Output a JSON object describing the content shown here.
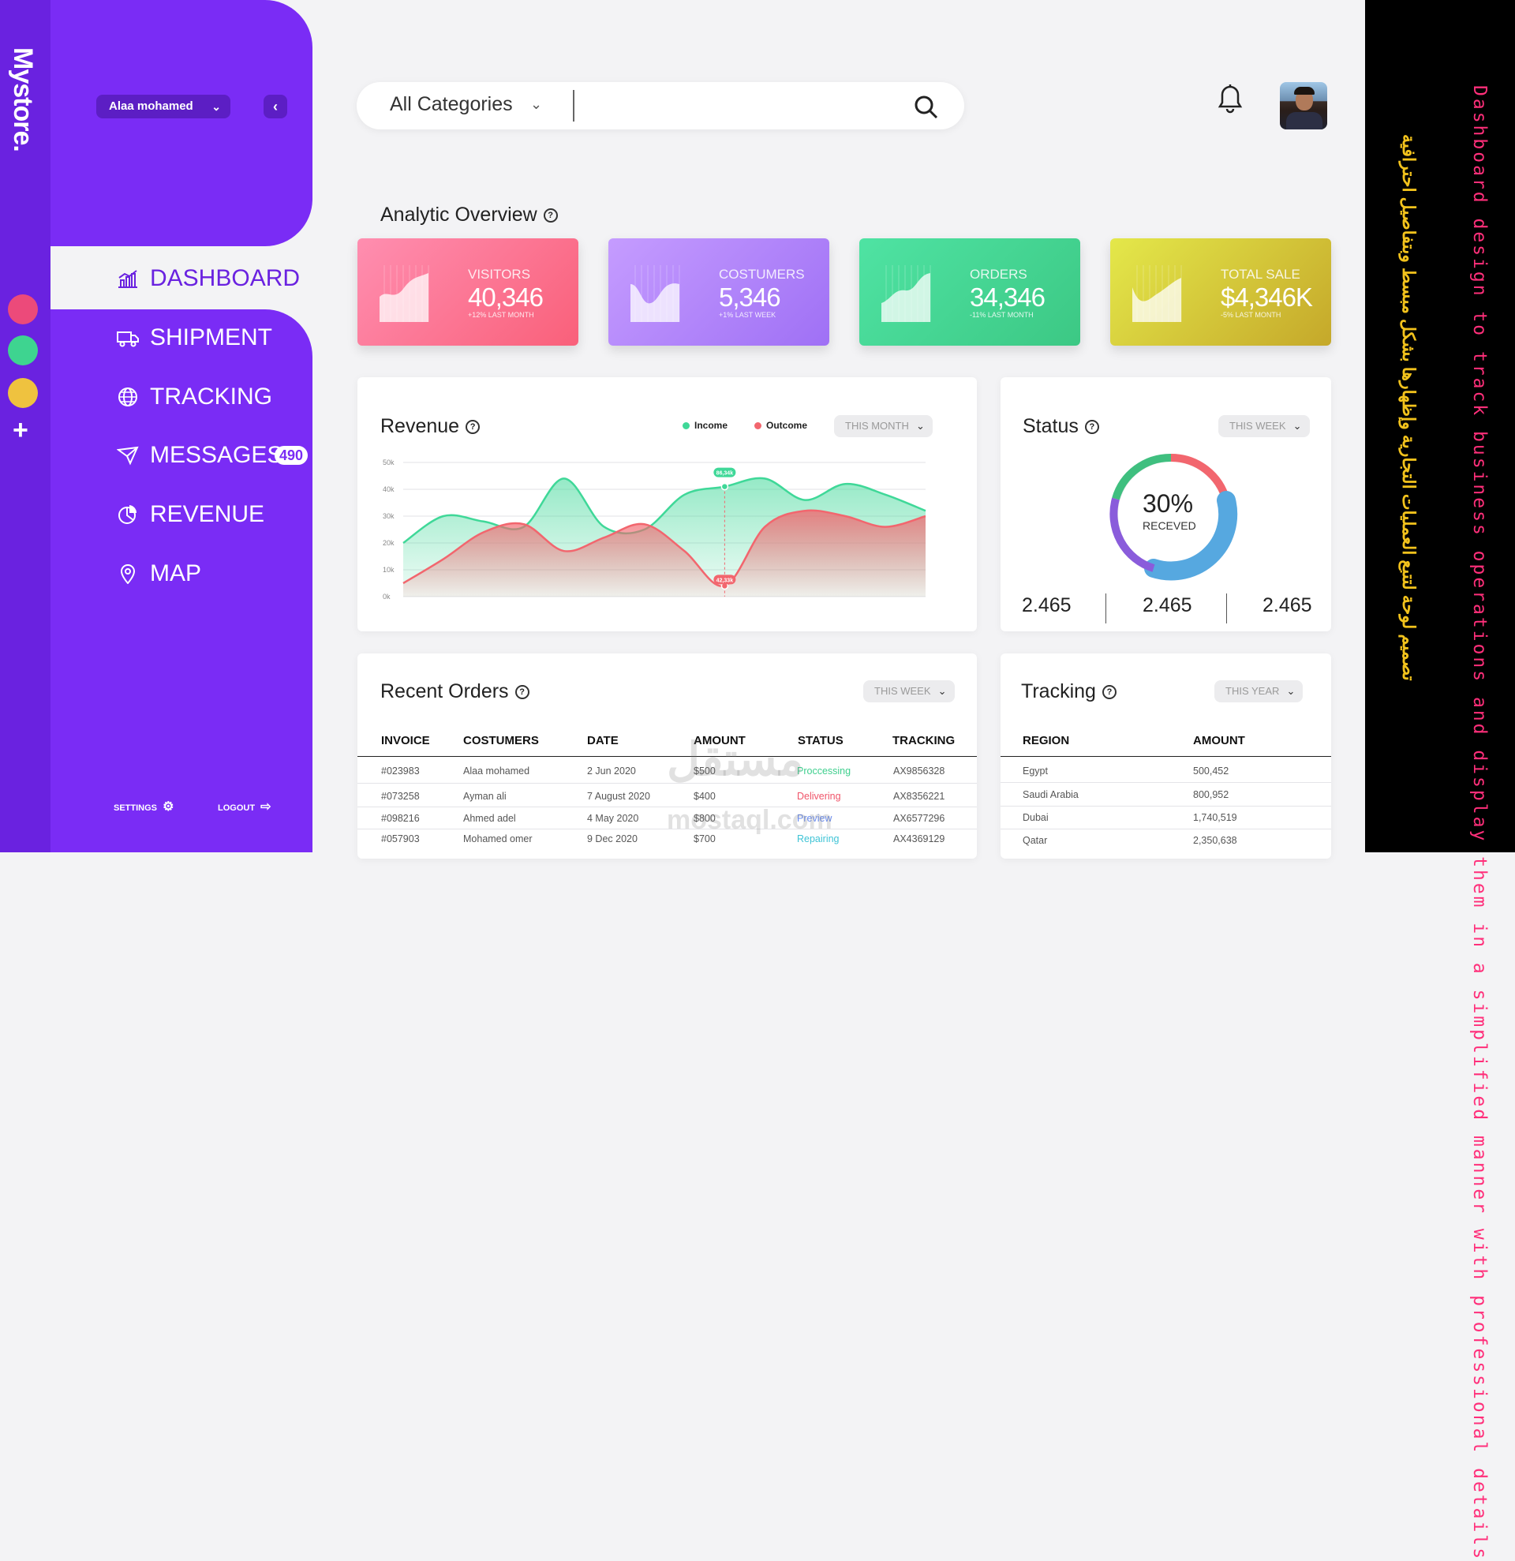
{
  "brand": "Mystore.",
  "user": {
    "name": "Alaa mohamed"
  },
  "nav": [
    {
      "label": "DASHBOARD",
      "active": true,
      "icon": "chart-icon"
    },
    {
      "label": "SHIPMENT",
      "icon": "truck-icon"
    },
    {
      "label": "TRACKING",
      "icon": "globe-icon"
    },
    {
      "label": "MESSAGES",
      "icon": "send-icon",
      "badge": "490"
    },
    {
      "label": "REVENUE",
      "icon": "pie-icon"
    },
    {
      "label": "MAP",
      "icon": "map-pin-icon"
    }
  ],
  "sidebar_footer": {
    "settings": "SETTINGS",
    "logout": "LOGOUT"
  },
  "theme_colors": [
    "#ec4a7a",
    "#3ed490",
    "#efc23f"
  ],
  "search": {
    "category": "All Categories",
    "value": ""
  },
  "analytic": {
    "title": "Analytic Overview",
    "cards": [
      {
        "label": "VISITORS",
        "value": "40,346",
        "sub": "+12% LAST MONTH",
        "colors": [
          "#ff8eb0",
          "#f9607a"
        ]
      },
      {
        "label": "COSTUMERS",
        "value": "5,346",
        "sub": "+1% LAST WEEK",
        "colors": [
          "#c59cff",
          "#9f70f5"
        ]
      },
      {
        "label": "ORDERS",
        "value": "34,346",
        "sub": "-11% LAST MONTH",
        "colors": [
          "#4fe3a3",
          "#3cc884"
        ]
      },
      {
        "label": "TOTAL SALE",
        "value": "$4,346K",
        "sub": "-5% LAST MONTH",
        "colors": [
          "#e4e84a",
          "#c5a82a"
        ]
      }
    ]
  },
  "revenue": {
    "title": "Revenue",
    "legend": [
      "Income",
      "Outcome"
    ],
    "period": "THIS MONTH",
    "callouts": [
      "86,34k",
      "42,33k"
    ]
  },
  "chart_data": {
    "type": "area",
    "ylim": [
      0,
      50000
    ],
    "yticks": [
      "0k",
      "10k",
      "20k",
      "30k",
      "40k",
      "50k"
    ],
    "series": [
      {
        "name": "Income",
        "color": "#3fd898",
        "values": [
          20000,
          30000,
          28000,
          26000,
          44000,
          26000,
          25000,
          38000,
          41000,
          44000,
          36000,
          42000,
          38000,
          32000
        ]
      },
      {
        "name": "Outcome",
        "color": "#f2666e",
        "values": [
          5000,
          14000,
          24000,
          27000,
          17000,
          22000,
          27000,
          17000,
          4000,
          26000,
          32000,
          30000,
          26000,
          30000
        ]
      }
    ]
  },
  "status": {
    "title": "Status",
    "period": "THIS WEEK",
    "percent": "30%",
    "caption": "RECEVED",
    "values": [
      "2.465",
      "2.465",
      "2.465"
    ]
  },
  "orders": {
    "title": "Recent Orders",
    "period": "THIS WEEK",
    "columns": [
      "INVOICE",
      "COSTUMERS",
      "DATE",
      "AMOUNT",
      "STATUS",
      "TRACKING"
    ],
    "rows": [
      {
        "invoice": "#023983",
        "customer": "Alaa mohamed",
        "date": "2 Jun 2020",
        "amount": "$500",
        "status": "Proccessing",
        "status_color": "#3fcf8e",
        "tracking": "AX9856328"
      },
      {
        "invoice": "#073258",
        "customer": "Ayman ali",
        "date": "7 August 2020",
        "amount": "$400",
        "status": "Delivering",
        "status_color": "#f0556a",
        "tracking": "AX8356221"
      },
      {
        "invoice": "#098216",
        "customer": "Ahmed adel",
        "date": "4 May 2020",
        "amount": "$800",
        "status": "Preview",
        "status_color": "#6a8cf0",
        "tracking": "AX6577296"
      },
      {
        "invoice": "#057903",
        "customer": "Mohamed omer",
        "date": "9 Dec 2020",
        "amount": "$700",
        "status": "Repairing",
        "status_color": "#3fc4d6",
        "tracking": "AX4369129"
      }
    ]
  },
  "tracking": {
    "title": "Tracking",
    "period": "THIS YEAR",
    "columns": [
      "REGION",
      "AMOUNT"
    ],
    "rows": [
      {
        "region": "Egypt",
        "amount": "500,452"
      },
      {
        "region": "Saudi Arabia",
        "amount": "800,952"
      },
      {
        "region": "Dubai",
        "amount": "1,740,519"
      },
      {
        "region": "Qatar",
        "amount": "2,350,638"
      }
    ]
  },
  "side_caption_en": "Dashboard design to track business operations and display them in a simplified manner with professional details",
  "side_caption_ar": "تصميم لوحة لتتبع العمليات التجارية وإظهارها بشكل مبسط وبتفاصيل احترافية",
  "watermark": {
    "ar": "مستقل",
    "en": "mostaql.com"
  }
}
